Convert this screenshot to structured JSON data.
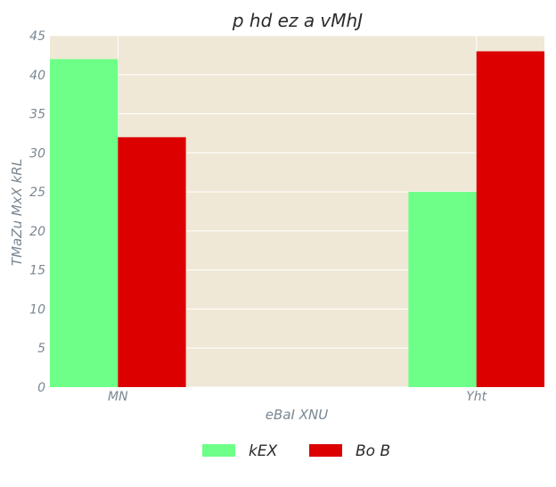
{
  "chart_data": {
    "type": "bar",
    "title": "p hd ez a vMhJ",
    "xlabel": "eBaI XNU",
    "ylabel": "TMaZu MxX kRL",
    "categories": [
      "MN",
      "Yht"
    ],
    "series": [
      {
        "name": "kEX",
        "values": [
          42,
          25
        ],
        "color": "#6dff88"
      },
      {
        "name": "Bo B",
        "values": [
          32,
          43
        ],
        "color": "#dc0000"
      }
    ],
    "ylim": [
      0,
      45
    ],
    "yticks": [
      0,
      5,
      10,
      15,
      20,
      25,
      30,
      35,
      40,
      45
    ],
    "grid": true,
    "legend_position": "bottom-center",
    "plot_background": "#efe8d6"
  }
}
